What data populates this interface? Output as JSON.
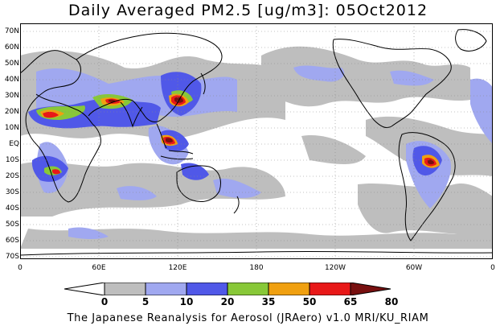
{
  "title": "Daily Averaged PM2.5 [ug/m3]: 05Oct2012",
  "footer": "The Japanese Reanalysis for Aerosol (JRAero) v1.0 MRI/KU_RIAM",
  "lat_labels": [
    "70N",
    "60N",
    "50N",
    "40N",
    "30N",
    "20N",
    "10N",
    "EQ",
    "10S",
    "20S",
    "30S",
    "40S",
    "50S",
    "60S",
    "70S"
  ],
  "lon_labels": [
    "0",
    "60E",
    "120E",
    "180",
    "120W",
    "60W",
    "0"
  ],
  "colorbar": {
    "levels": [
      "0",
      "5",
      "10",
      "20",
      "35",
      "50",
      "65",
      "80"
    ],
    "colors": [
      "#ffffff",
      "#bebebe",
      "#a0a8f0",
      "#5058e8",
      "#88c838",
      "#f0a010",
      "#e81818",
      "#781010"
    ]
  },
  "colors": {
    "gray": "#bebebe",
    "light_blue": "#a0a8f0",
    "blue": "#5058e8",
    "green": "#88c838",
    "orange": "#f0a010",
    "red": "#e81818",
    "darkred": "#781010"
  }
}
